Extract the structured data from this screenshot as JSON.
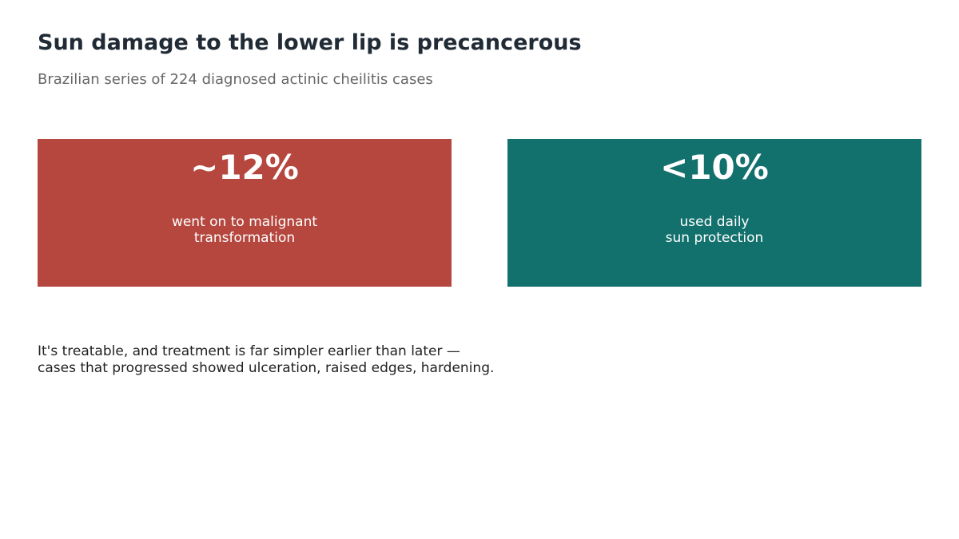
{
  "title": "Sun damage to the lower lip is precancerous",
  "subtitle": "Brazilian series of 224 diagnosed actinic cheilitis cases",
  "cards": [
    {
      "value": "~12%",
      "desc_lines": [
        "went on to malignant",
        "transformation"
      ],
      "color": "#b5473e"
    },
    {
      "value": "<10%",
      "desc_lines": [
        "used daily",
        "sun protection"
      ],
      "color": "#12706d"
    }
  ],
  "footnote_lines": [
    "It's treatable, and treatment is far simpler earlier than later —",
    "cases that progressed showed ulceration, raised edges, hardening."
  ]
}
